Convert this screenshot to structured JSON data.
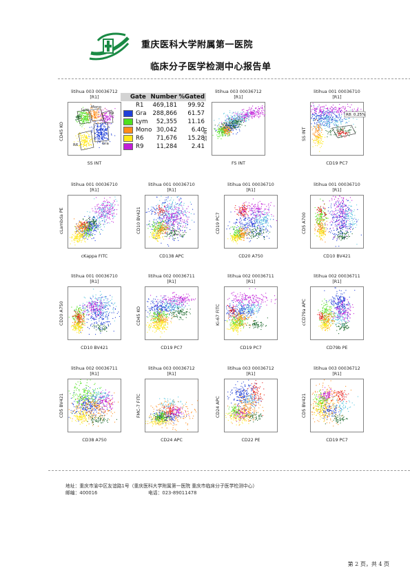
{
  "header": {
    "hospital_name": "重庆医科大学附属第一医院",
    "report_title": "临床分子医学检测中心报告单"
  },
  "colors": {
    "Gra": "#1f3fd8",
    "Lym": "#4fe01f",
    "Mono": "#ff8c1a",
    "R6": "#ffe81a",
    "R9": "#c21cd8",
    "red": "#e61a1a",
    "dkgreen": "#1f6a2e",
    "cyan": "#5ac8e0",
    "R1": "#ffffff"
  },
  "gate_table": {
    "headers": [
      "Gate",
      "Number",
      "%Gated"
    ],
    "rows": [
      {
        "gate": "R1",
        "number": "469,181",
        "pct": "99.92",
        "color": "R1"
      },
      {
        "gate": "Gra",
        "number": "288,866",
        "pct": "61.57",
        "color": "Gra"
      },
      {
        "gate": "Lym",
        "number": "52,355",
        "pct": "11.16",
        "color": "Lym"
      },
      {
        "gate": "Mono",
        "number": "30,042",
        "pct": "6.40",
        "color": "Mono"
      },
      {
        "gate": "R6",
        "number": "71,676",
        "pct": "15.28",
        "color": "R6"
      },
      {
        "gate": "R9",
        "number": "11,284",
        "pct": "2.41",
        "color": "R9"
      }
    ]
  },
  "plots": [
    {
      "title1": "litihua 003 00036712",
      "title2": "[R1]",
      "xlabel": "SS INT",
      "ylabel": "CD45 KO",
      "xscale": "log",
      "gates": [
        "Lym",
        "Mono",
        "R9",
        "Gra",
        "R6"
      ]
    },
    {
      "title1": "litihua 003 00036712",
      "title2": "[R1]",
      "xlabel": "FS INT",
      "ylabel": "SS INT",
      "xscale": "linear"
    },
    {
      "title1": "litihua 001 00036710",
      "title2": "[R1]",
      "xlabel": "CD19 PC7",
      "ylabel": "SS INT",
      "xscale": "log",
      "gate_label": "R8: 0.25%"
    },
    {
      "title1": "litihua 001 00036710",
      "title2": "[R1]",
      "xlabel": "cKappa FITC",
      "ylabel": "cLambda PE",
      "xscale": "log"
    },
    {
      "title1": "litihua 001 00036710",
      "title2": "[R1]",
      "xlabel": "CD138 APC",
      "ylabel": "CD10 BV421",
      "xscale": "log"
    },
    {
      "title1": "litihua 001 00036710",
      "title2": "[R1]",
      "xlabel": "CD20 A750",
      "ylabel": "CD19 PC7",
      "xscale": "log"
    },
    {
      "title1": "litihua 001 00036710",
      "title2": "[R1]",
      "xlabel": "CD10 BV421",
      "ylabel": "CD5 A700",
      "xscale": "log"
    },
    {
      "title1": "litihua 001 00036710",
      "title2": "[R1]",
      "xlabel": "CD10 BV421",
      "ylabel": "CD20 A750",
      "xscale": "log"
    },
    {
      "title1": "litihua 002 00036711",
      "title2": "[R1]",
      "xlabel": "CD19 PC7",
      "ylabel": "CD45 KO",
      "xscale": "log"
    },
    {
      "title1": "litihua 002 00036711",
      "title2": "[R1]",
      "xlabel": "CD19 PC7",
      "ylabel": "Ki-67 FITC",
      "xscale": "log"
    },
    {
      "title1": "litihua 002 00036711",
      "title2": "[R1]",
      "xlabel": "CD79b PE",
      "ylabel": "cCD79a APC",
      "xscale": "log"
    },
    {
      "title1": "litihua 002 00036711",
      "title2": "[R1]",
      "xlabel": "CD38 A750",
      "ylabel": "CD5 BV421",
      "xscale": "log"
    },
    {
      "title1": "litihua 003 00036712",
      "title2": "[R1]",
      "xlabel": "CD24 APC",
      "ylabel": "FMC-7 FITC",
      "xscale": "log"
    },
    {
      "title1": "litihua 003 00036712",
      "title2": "[R1]",
      "xlabel": "CD22 PE",
      "ylabel": "CD24 APC",
      "xscale": "log"
    },
    {
      "title1": "litihua 003 00036712",
      "title2": "[R1]",
      "xlabel": "CD19 PC7",
      "ylabel": "CD5 BV421",
      "xscale": "log"
    }
  ],
  "footer": {
    "address": "地址：重庆市渝中区友谊路1号（重庆医科大学附属第一医院 重庆市临床分子医学检测中心）",
    "postcode": "邮编：400016",
    "phone": "电话：023-89011478",
    "page_number": "第 2 页，共 4 页"
  }
}
